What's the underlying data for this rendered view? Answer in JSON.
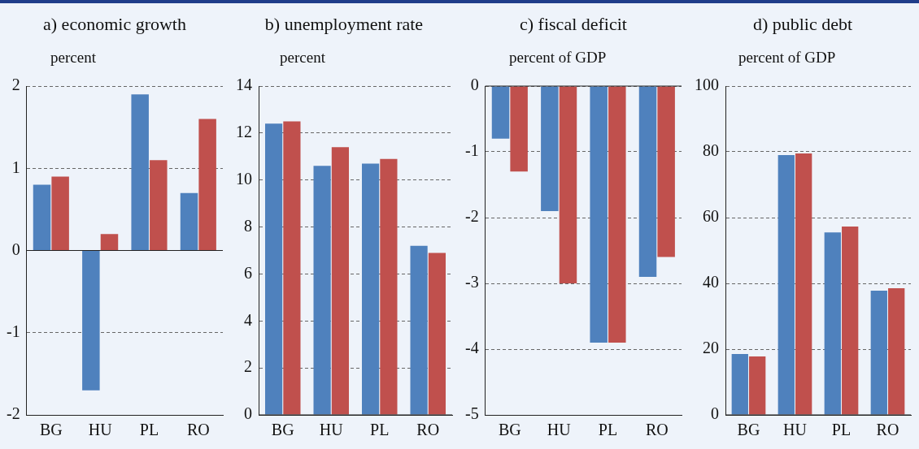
{
  "chart_data": [
    {
      "type": "bar",
      "title": "a) economic growth",
      "ylabel": "percent",
      "categories": [
        "BG",
        "HU",
        "PL",
        "RO"
      ],
      "series": [
        {
          "color": "#4f81bd",
          "values": [
            0.8,
            -1.7,
            1.9,
            0.7
          ]
        },
        {
          "color": "#c0504d",
          "values": [
            0.9,
            0.2,
            1.1,
            1.6
          ]
        }
      ],
      "ylim": [
        -2,
        2
      ],
      "yticks": [
        -2,
        -1,
        0,
        1,
        2
      ],
      "grid": "y"
    },
    {
      "type": "bar",
      "title": "b) unemployment rate",
      "ylabel": "percent",
      "categories": [
        "BG",
        "HU",
        "PL",
        "RO"
      ],
      "series": [
        {
          "color": "#4f81bd",
          "values": [
            12.4,
            10.6,
            10.7,
            7.2
          ]
        },
        {
          "color": "#c0504d",
          "values": [
            12.5,
            11.4,
            10.9,
            6.9
          ]
        }
      ],
      "ylim": [
        0,
        14
      ],
      "yticks": [
        0,
        2,
        4,
        6,
        8,
        10,
        12,
        14
      ],
      "grid": "y"
    },
    {
      "type": "bar",
      "title": "c) fiscal deficit",
      "ylabel": "percent of GDP",
      "categories": [
        "BG",
        "HU",
        "PL",
        "RO"
      ],
      "series": [
        {
          "color": "#4f81bd",
          "values": [
            -0.8,
            -1.9,
            -3.9,
            -2.9
          ]
        },
        {
          "color": "#c0504d",
          "values": [
            -1.3,
            -3.0,
            -3.9,
            -2.6
          ]
        }
      ],
      "ylim": [
        -5,
        0
      ],
      "yticks": [
        -5,
        -4,
        -3,
        -2,
        -1,
        0
      ],
      "grid": "y"
    },
    {
      "type": "bar",
      "title": "d) public debt",
      "ylabel": "percent of GDP",
      "categories": [
        "BG",
        "HU",
        "PL",
        "RO"
      ],
      "series": [
        {
          "color": "#4f81bd",
          "values": [
            18.5,
            79,
            55.5,
            37.8
          ]
        },
        {
          "color": "#c0504d",
          "values": [
            17.8,
            79.5,
            57.3,
            38.5
          ]
        }
      ],
      "ylim": [
        0,
        100
      ],
      "yticks": [
        0,
        20,
        40,
        60,
        80,
        100
      ],
      "grid": "y"
    }
  ]
}
